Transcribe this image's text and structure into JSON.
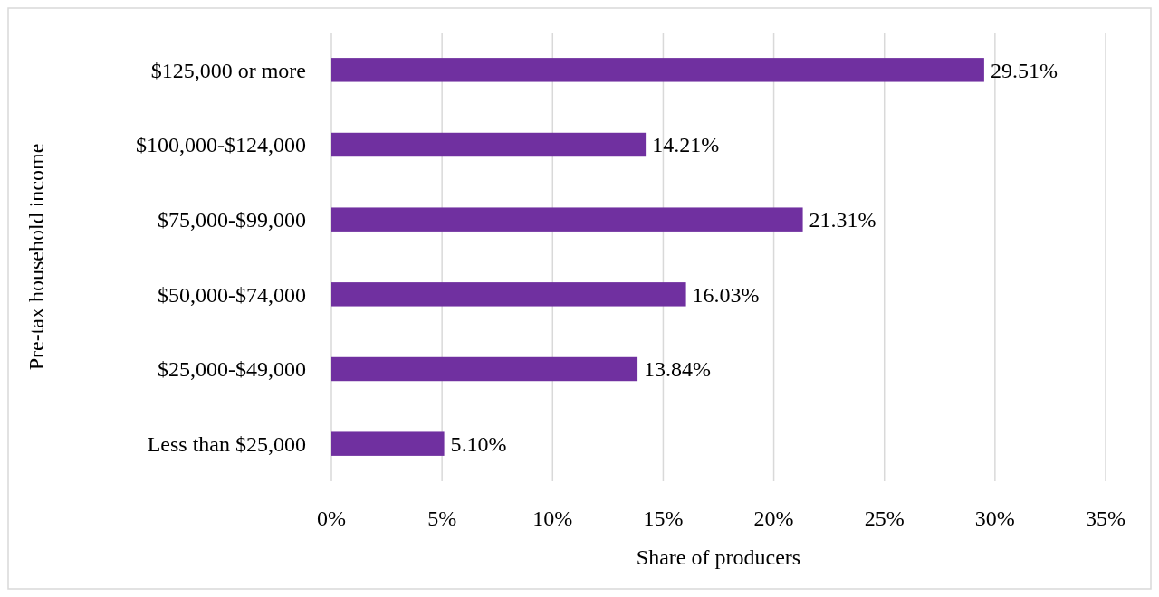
{
  "chart_data": {
    "type": "bar",
    "orientation": "horizontal",
    "xlabel": "Share of producers",
    "ylabel": "Pre-tax household income",
    "categories": [
      "$125,000 or more",
      "$100,000-$124,000",
      "$75,000-$99,000",
      "$50,000-$74,000",
      "$25,000-$49,000",
      "Less than $25,000"
    ],
    "values": [
      29.51,
      14.21,
      21.31,
      16.03,
      13.84,
      5.1
    ],
    "value_labels": [
      "29.51%",
      "14.21%",
      "21.31%",
      "16.03%",
      "13.84%",
      "5.10%"
    ],
    "color": "#7030a0",
    "xlim": [
      0,
      35
    ],
    "xticks": [
      {
        "value": 0,
        "label": "0%"
      },
      {
        "value": 5,
        "label": "5%"
      },
      {
        "value": 10,
        "label": "10%"
      },
      {
        "value": 15,
        "label": "15%"
      },
      {
        "value": 20,
        "label": "20%"
      },
      {
        "value": 25,
        "label": "25%"
      },
      {
        "value": 30,
        "label": "30%"
      },
      {
        "value": 35,
        "label": "35%"
      }
    ],
    "grid": "x"
  }
}
